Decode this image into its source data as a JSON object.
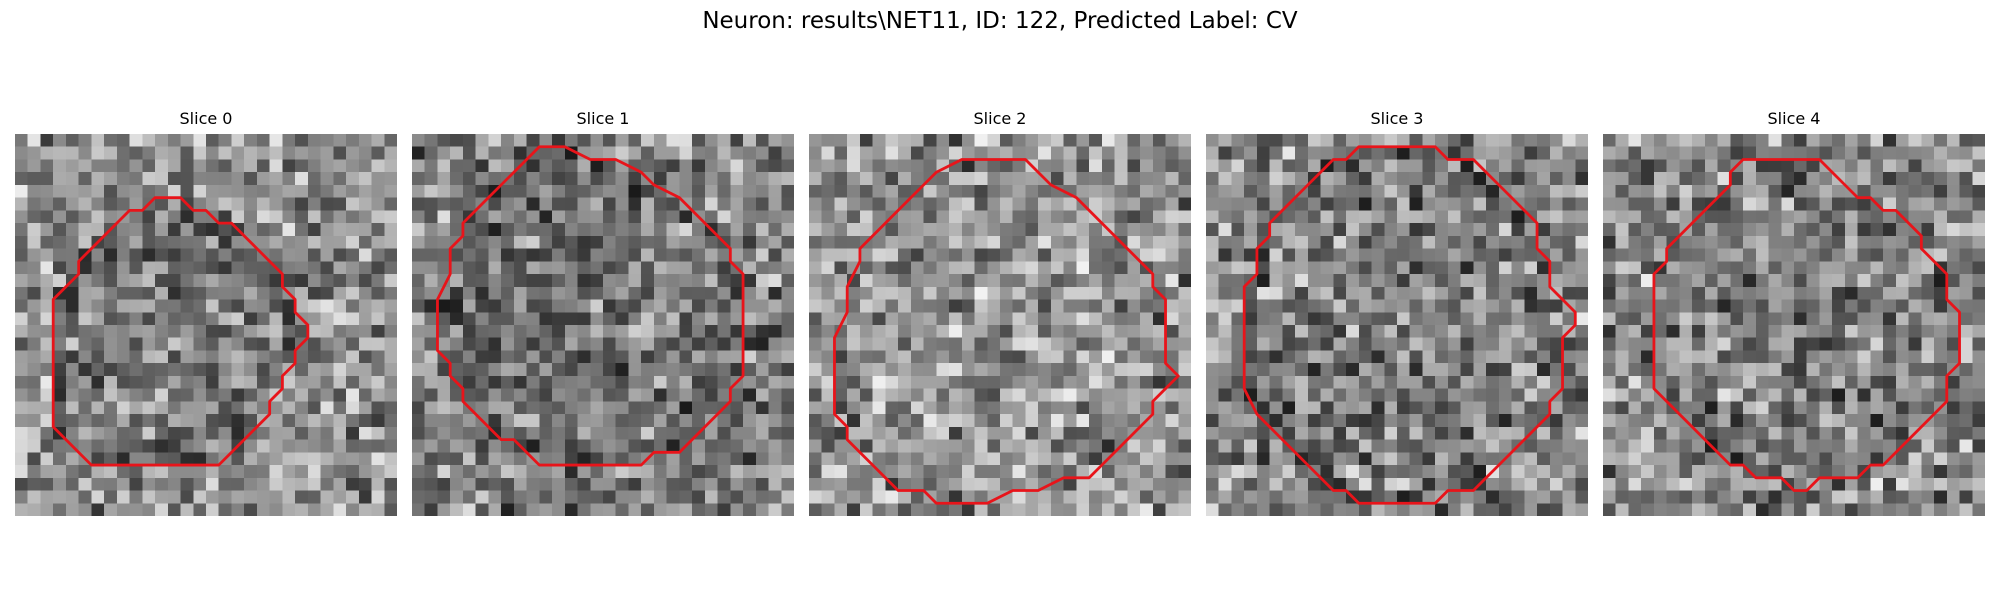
{
  "figure": {
    "title": "Neuron: results\\NET11, ID: 122, Predicted Label: CV",
    "outline_color": "#e8141a"
  },
  "panels": [
    {
      "title": "Slice 0",
      "outline": [
        [
          12,
          5
        ],
        [
          13,
          5
        ],
        [
          14,
          6
        ],
        [
          15,
          6
        ],
        [
          16,
          7
        ],
        [
          17,
          7
        ],
        [
          18,
          8
        ],
        [
          19,
          9
        ],
        [
          20,
          10
        ],
        [
          21,
          11
        ],
        [
          21,
          12
        ],
        [
          22,
          13
        ],
        [
          22,
          14
        ],
        [
          23,
          15
        ],
        [
          23,
          16
        ],
        [
          22,
          17
        ],
        [
          22,
          18
        ],
        [
          21,
          19
        ],
        [
          21,
          20
        ],
        [
          20,
          21
        ],
        [
          20,
          22
        ],
        [
          19,
          23
        ],
        [
          18,
          24
        ],
        [
          17,
          25
        ],
        [
          16,
          26
        ],
        [
          14,
          26
        ],
        [
          12,
          26
        ],
        [
          10,
          26
        ],
        [
          8,
          26
        ],
        [
          6,
          26
        ],
        [
          5,
          25
        ],
        [
          4,
          24
        ],
        [
          3,
          23
        ],
        [
          3,
          22
        ],
        [
          3,
          21
        ],
        [
          3,
          19
        ],
        [
          3,
          17
        ],
        [
          3,
          15
        ],
        [
          3,
          13
        ],
        [
          4,
          12
        ],
        [
          5,
          11
        ],
        [
          5,
          10
        ],
        [
          6,
          9
        ],
        [
          7,
          8
        ],
        [
          8,
          7
        ],
        [
          9,
          6
        ],
        [
          10,
          6
        ],
        [
          11,
          5
        ]
      ],
      "intensity": {
        "low": "#2b2b2b",
        "high": "#f0f0f0",
        "inside_darken": 0.08
      }
    },
    {
      "title": "Slice 1",
      "outline": [
        [
          10,
          1
        ],
        [
          12,
          1
        ],
        [
          14,
          2
        ],
        [
          16,
          2
        ],
        [
          18,
          3
        ],
        [
          19,
          4
        ],
        [
          21,
          5
        ],
        [
          22,
          6
        ],
        [
          23,
          7
        ],
        [
          24,
          8
        ],
        [
          25,
          9
        ],
        [
          25,
          10
        ],
        [
          26,
          11
        ],
        [
          26,
          13
        ],
        [
          26,
          15
        ],
        [
          26,
          17
        ],
        [
          26,
          19
        ],
        [
          25,
          20
        ],
        [
          25,
          21
        ],
        [
          24,
          22
        ],
        [
          23,
          23
        ],
        [
          22,
          24
        ],
        [
          21,
          25
        ],
        [
          19,
          25
        ],
        [
          18,
          26
        ],
        [
          16,
          26
        ],
        [
          14,
          26
        ],
        [
          12,
          26
        ],
        [
          10,
          26
        ],
        [
          9,
          25
        ],
        [
          8,
          24
        ],
        [
          7,
          24
        ],
        [
          6,
          23
        ],
        [
          5,
          22
        ],
        [
          4,
          21
        ],
        [
          4,
          20
        ],
        [
          3,
          19
        ],
        [
          3,
          18
        ],
        [
          2,
          17
        ],
        [
          2,
          15
        ],
        [
          2,
          13
        ],
        [
          3,
          11
        ],
        [
          3,
          9
        ],
        [
          4,
          8
        ],
        [
          4,
          7
        ],
        [
          5,
          6
        ],
        [
          6,
          5
        ],
        [
          7,
          4
        ],
        [
          8,
          3
        ],
        [
          9,
          2
        ]
      ],
      "intensity": {
        "low": "#1a1a1a",
        "high": "#e6e6e6",
        "inside_darken": 0.05
      }
    },
    {
      "title": "Slice 2",
      "outline": [
        [
          12,
          2
        ],
        [
          14,
          2
        ],
        [
          16,
          2
        ],
        [
          17,
          2
        ],
        [
          18,
          3
        ],
        [
          19,
          4
        ],
        [
          21,
          5
        ],
        [
          22,
          6
        ],
        [
          23,
          7
        ],
        [
          24,
          8
        ],
        [
          25,
          9
        ],
        [
          26,
          10
        ],
        [
          27,
          11
        ],
        [
          27,
          12
        ],
        [
          28,
          13
        ],
        [
          28,
          15
        ],
        [
          28,
          17
        ],
        [
          28,
          18
        ],
        [
          29,
          19
        ],
        [
          28,
          20
        ],
        [
          27,
          21
        ],
        [
          27,
          22
        ],
        [
          26,
          23
        ],
        [
          25,
          24
        ],
        [
          24,
          25
        ],
        [
          23,
          26
        ],
        [
          22,
          27
        ],
        [
          20,
          27
        ],
        [
          18,
          28
        ],
        [
          16,
          28
        ],
        [
          14,
          29
        ],
        [
          12,
          29
        ],
        [
          10,
          29
        ],
        [
          9,
          28
        ],
        [
          7,
          28
        ],
        [
          6,
          27
        ],
        [
          5,
          26
        ],
        [
          4,
          25
        ],
        [
          3,
          24
        ],
        [
          3,
          23
        ],
        [
          2,
          22
        ],
        [
          2,
          20
        ],
        [
          2,
          18
        ],
        [
          2,
          16
        ],
        [
          3,
          14
        ],
        [
          3,
          12
        ],
        [
          4,
          10
        ],
        [
          4,
          9
        ],
        [
          5,
          8
        ],
        [
          6,
          7
        ],
        [
          7,
          6
        ],
        [
          8,
          5
        ],
        [
          9,
          4
        ],
        [
          10,
          3
        ]
      ],
      "intensity": {
        "low": "#2a2a2a",
        "high": "#f2f2f2",
        "inside_darken": -0.05
      }
    },
    {
      "title": "Slice 3",
      "outline": [
        [
          12,
          1
        ],
        [
          14,
          1
        ],
        [
          16,
          1
        ],
        [
          18,
          1
        ],
        [
          19,
          2
        ],
        [
          21,
          2
        ],
        [
          22,
          3
        ],
        [
          23,
          4
        ],
        [
          24,
          5
        ],
        [
          25,
          6
        ],
        [
          26,
          7
        ],
        [
          26,
          9
        ],
        [
          27,
          10
        ],
        [
          27,
          12
        ],
        [
          28,
          13
        ],
        [
          29,
          14
        ],
        [
          29,
          15
        ],
        [
          28,
          16
        ],
        [
          28,
          18
        ],
        [
          28,
          20
        ],
        [
          27,
          21
        ],
        [
          27,
          22
        ],
        [
          26,
          23
        ],
        [
          25,
          24
        ],
        [
          24,
          25
        ],
        [
          23,
          26
        ],
        [
          22,
          27
        ],
        [
          21,
          28
        ],
        [
          19,
          28
        ],
        [
          18,
          29
        ],
        [
          16,
          29
        ],
        [
          14,
          29
        ],
        [
          12,
          29
        ],
        [
          11,
          28
        ],
        [
          10,
          28
        ],
        [
          9,
          27
        ],
        [
          8,
          26
        ],
        [
          7,
          25
        ],
        [
          6,
          24
        ],
        [
          5,
          23
        ],
        [
          4,
          22
        ],
        [
          3,
          20
        ],
        [
          3,
          18
        ],
        [
          3,
          16
        ],
        [
          3,
          14
        ],
        [
          3,
          12
        ],
        [
          4,
          11
        ],
        [
          4,
          9
        ],
        [
          5,
          8
        ],
        [
          5,
          7
        ],
        [
          6,
          6
        ],
        [
          7,
          5
        ],
        [
          8,
          4
        ],
        [
          9,
          3
        ],
        [
          10,
          2
        ],
        [
          11,
          2
        ]
      ],
      "intensity": {
        "low": "#1e1e1e",
        "high": "#f0f0f0",
        "inside_darken": 0.04
      }
    },
    {
      "title": "Slice 4",
      "outline": [
        [
          11,
          2
        ],
        [
          13,
          2
        ],
        [
          15,
          2
        ],
        [
          17,
          2
        ],
        [
          18,
          3
        ],
        [
          19,
          4
        ],
        [
          20,
          5
        ],
        [
          21,
          5
        ],
        [
          22,
          6
        ],
        [
          23,
          6
        ],
        [
          24,
          7
        ],
        [
          25,
          8
        ],
        [
          25,
          9
        ],
        [
          26,
          10
        ],
        [
          27,
          11
        ],
        [
          27,
          13
        ],
        [
          28,
          14
        ],
        [
          28,
          16
        ],
        [
          28,
          18
        ],
        [
          27,
          19
        ],
        [
          27,
          21
        ],
        [
          26,
          22
        ],
        [
          25,
          23
        ],
        [
          24,
          24
        ],
        [
          23,
          25
        ],
        [
          22,
          26
        ],
        [
          21,
          26
        ],
        [
          20,
          27
        ],
        [
          18,
          27
        ],
        [
          17,
          27
        ],
        [
          16,
          28
        ],
        [
          15,
          28
        ],
        [
          14,
          27
        ],
        [
          13,
          27
        ],
        [
          12,
          27
        ],
        [
          11,
          26
        ],
        [
          10,
          26
        ],
        [
          9,
          25
        ],
        [
          8,
          24
        ],
        [
          7,
          23
        ],
        [
          6,
          22
        ],
        [
          5,
          21
        ],
        [
          4,
          20
        ],
        [
          4,
          19
        ],
        [
          4,
          17
        ],
        [
          4,
          15
        ],
        [
          4,
          13
        ],
        [
          4,
          11
        ],
        [
          5,
          10
        ],
        [
          5,
          9
        ],
        [
          6,
          8
        ],
        [
          7,
          7
        ],
        [
          8,
          6
        ],
        [
          9,
          5
        ],
        [
          10,
          4
        ],
        [
          10,
          3
        ]
      ],
      "intensity": {
        "low": "#1c1c1c",
        "high": "#f0f0f0",
        "inside_darken": 0.02
      }
    }
  ]
}
